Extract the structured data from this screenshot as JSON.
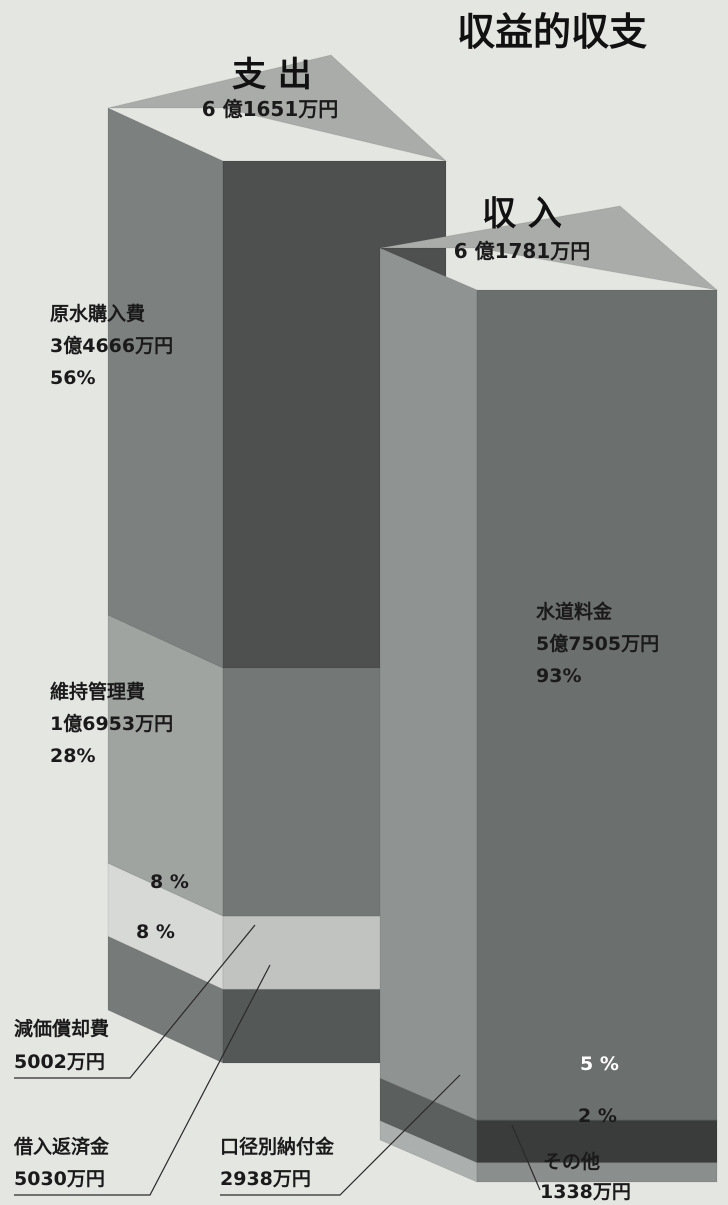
{
  "chart_data": {
    "type": "bar",
    "title": "収益的収支",
    "series": [
      {
        "id": "expense",
        "name": "支 出",
        "total_label": "6 億1651万円",
        "segments": [
          {
            "name": "原水購入費",
            "amount_label": "3億4666万円",
            "pct_label": "56%",
            "value": 34666
          },
          {
            "name": "維持管理費",
            "amount_label": "1億6953万円",
            "pct_label": "28%",
            "value": 16953
          },
          {
            "name": "減価償却費",
            "amount_label": "5002万円",
            "pct_label": "8 %",
            "value": 5002
          },
          {
            "name": "借入返済金",
            "amount_label": "5030万円",
            "pct_label": "8 %",
            "value": 5030
          }
        ]
      },
      {
        "id": "income",
        "name": "収 入",
        "total_label": "6 億1781万円",
        "segments": [
          {
            "name": "水道料金",
            "amount_label": "5億7505万円",
            "pct_label": "93%",
            "value": 57505
          },
          {
            "name": "口径別納付金",
            "amount_label": "2938万円",
            "pct_label": "5 %",
            "value": 2938
          },
          {
            "name": "その他",
            "amount_label": "1338万円",
            "pct_label": "2 %",
            "value": 1338
          }
        ]
      }
    ],
    "colors": {
      "background": "#e4e6e1",
      "top_face": "#a9aca8",
      "expense": [
        {
          "front": "#4d504f",
          "side": "#7c807e"
        },
        {
          "front": "#737775",
          "side": "#a0a4a1"
        },
        {
          "front": "#c0c3c0",
          "side": "#d6d9d6"
        },
        {
          "front": "#545857",
          "side": "#767a78"
        }
      ],
      "income": [
        {
          "front": "#6b706e",
          "side": "#8f9391"
        },
        {
          "front": "#393c3b",
          "side": "#5b5f5d"
        },
        {
          "front": "#8a8e8c",
          "side": "#abafad"
        }
      ]
    }
  }
}
